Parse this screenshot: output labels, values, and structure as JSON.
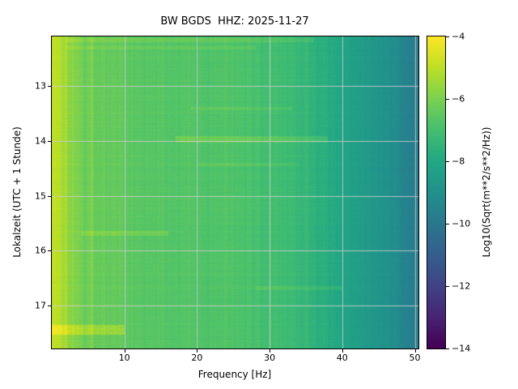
{
  "figure": {
    "title": "BW BGDS  HHZ: 2025-11-27",
    "xlabel": "Frequency [Hz]",
    "ylabel": "Lokalzeit (UTC + 1 Stunde)",
    "colorbar_label": "Log10(Sqrt(m**2/s**2/Hz))"
  },
  "chart_data": {
    "type": "heatmap",
    "title": "BW BGDS  HHZ: 2025-11-27",
    "xlabel": "Frequency [Hz]",
    "ylabel": "Lokalzeit (UTC + 1 Stunde)",
    "xlim": [
      0,
      50.5
    ],
    "ylim_time": [
      12.1,
      17.78
    ],
    "x_ticks": [
      10,
      20,
      30,
      40,
      50
    ],
    "y_ticks": [
      13,
      14,
      15,
      16,
      17
    ],
    "grid": true,
    "grid_color": "#cccccc",
    "colorbar": {
      "label": "Log10(Sqrt(m**2/s**2/Hz))",
      "ticks": [
        -4,
        -6,
        -8,
        -10,
        -12,
        -14
      ],
      "vmin": -14,
      "vmax": -4,
      "colormap": "viridis"
    },
    "viridis_stops": [
      "#440154",
      "#482475",
      "#414487",
      "#355f8d",
      "#2a788e",
      "#21918c",
      "#22a884",
      "#44bf70",
      "#7ad151",
      "#bddf26",
      "#fde725"
    ],
    "base_profile": {
      "freq": [
        0,
        1,
        2,
        4,
        8,
        12,
        18,
        24,
        30,
        34,
        38,
        42,
        46,
        50.5
      ],
      "value": [
        -4.9,
        -5.1,
        -5.5,
        -6.0,
        -6.4,
        -6.6,
        -6.7,
        -6.8,
        -7.0,
        -7.3,
        -7.8,
        -8.4,
        -9.0,
        -9.8
      ]
    },
    "bands": [
      {
        "t0": 12.12,
        "t1": 12.2,
        "f0": 2,
        "f1": 36,
        "dv": 0.35
      },
      {
        "t0": 12.27,
        "t1": 12.33,
        "f0": 2,
        "f1": 28,
        "dv": 0.3
      },
      {
        "t0": 13.37,
        "t1": 13.43,
        "f0": 19,
        "f1": 33,
        "dv": 0.3
      },
      {
        "t0": 13.9,
        "t1": 14.02,
        "f0": 17,
        "f1": 38,
        "dv": 0.55
      },
      {
        "t0": 14.4,
        "t1": 14.46,
        "f0": 20,
        "f1": 34,
        "dv": 0.25
      },
      {
        "t0": 15.63,
        "t1": 15.72,
        "f0": 4,
        "f1": 16,
        "dv": 0.45
      },
      {
        "t0": 16.63,
        "t1": 16.71,
        "f0": 28,
        "f1": 40,
        "dv": 0.35
      },
      {
        "t0": 17.35,
        "t1": 17.52,
        "f0": 0,
        "f1": 10,
        "dv": 0.85
      }
    ]
  }
}
